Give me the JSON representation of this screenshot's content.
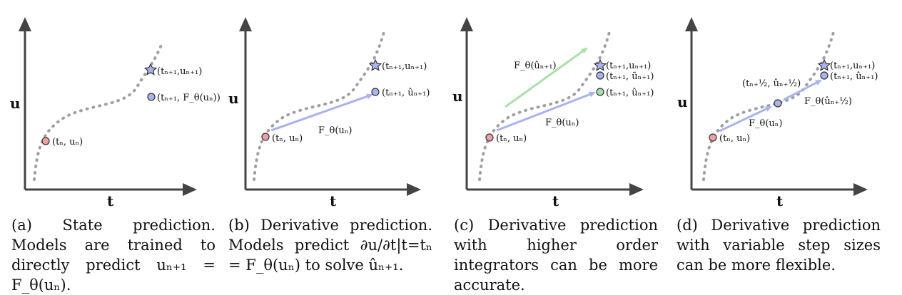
{
  "colors": {
    "axis": "#444444",
    "curve": "#a0a0a0",
    "red_point": "#f0a0a0",
    "blue_point": "#a9b3f0",
    "green_point": "#a8e0a8",
    "blue_arrow": "#a9b3f0",
    "green_arrow": "#a8e0a8"
  },
  "panels": [
    {
      "axis_x_label": "t",
      "axis_y_label": "u",
      "labels": {
        "start": "(tₙ, uₙ)",
        "true_next": "(tₙ₊₁,uₙ₊₁)",
        "pred": "(tₙ₊₁, F_θ(uₙ))"
      },
      "caption": "(a) State prediction. Models are trained to directly predict uₙ₊₁ = F_θ(uₙ)."
    },
    {
      "axis_x_label": "t",
      "axis_y_label": "u",
      "labels": {
        "start": "(tₙ, uₙ)",
        "true_next": "(tₙ₊₁,uₙ₊₁)",
        "pred": "(tₙ₊₁, ûₙ₊₁)",
        "arrow": "F_θ(uₙ)"
      },
      "caption": "(b) Derivative prediction. Models predict ∂u/∂t|t=tₙ = F_θ(uₙ) to solve ûₙ₊₁."
    },
    {
      "axis_x_label": "t",
      "axis_y_label": "u",
      "labels": {
        "start": "(tₙ, uₙ)",
        "true_next": "(tₙ₊₁,uₙ₊₁)",
        "tilde": "(tₙ₊₁, ũₙ₊₁)",
        "hat": "(tₙ₊₁, ûₙ₊₁)",
        "arrow_blue": "F_θ(uₙ)",
        "arrow_green": "F_θ(ûₙ₊₁)"
      },
      "caption": "(c) Derivative prediction with higher order integrators can be more accurate."
    },
    {
      "axis_x_label": "t",
      "axis_y_label": "u",
      "labels": {
        "start": "(tₙ, uₙ)",
        "mid": "(tₙ₊½, ûₙ₊½)",
        "true_next": "(tₙ₊₁,uₙ₊₁)",
        "hat": "(tₙ₊₁, ûₙ₊₁)",
        "arrow1": "F_θ(uₙ)",
        "arrow2": "F_θ(ûₙ₊½)"
      },
      "caption": "(d) Derivative prediction with variable step sizes can be more flexible."
    }
  ]
}
